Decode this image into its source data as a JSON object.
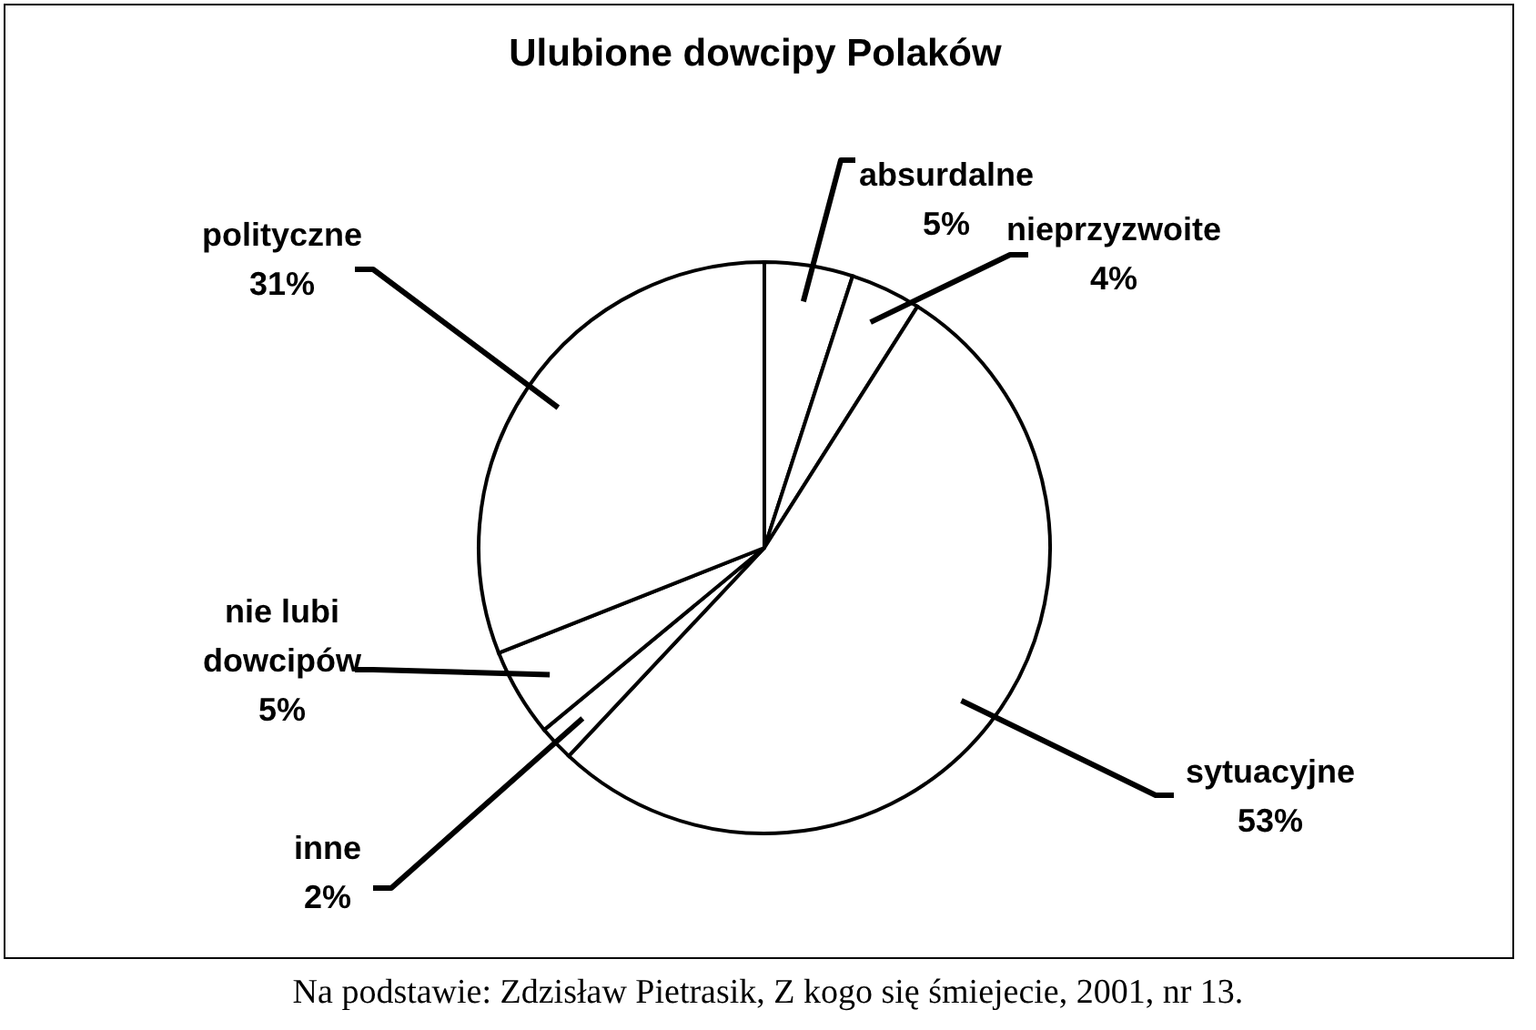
{
  "chart_data": {
    "type": "pie",
    "title": "Ulubione dowcipy Polaków",
    "categories": [
      "absurdalne",
      "nieprzyzwoite",
      "sytuacyjne",
      "inne",
      "nie lubi dowcipów",
      "polityczne"
    ],
    "values": [
      5,
      4,
      53,
      2,
      5,
      31
    ],
    "colors": [
      "#ffffff",
      "#ffffff",
      "#ffffff",
      "#ffffff",
      "#ffffff",
      "#ffffff"
    ],
    "value_labels": [
      "5%",
      "4%",
      "53%",
      "2%",
      "5%",
      "31%"
    ],
    "legend": false,
    "annotations": [
      "Na podstawie: Zdzisław Pietrasik, Z kogo się śmiejecie, 2001, nr 13."
    ]
  }
}
